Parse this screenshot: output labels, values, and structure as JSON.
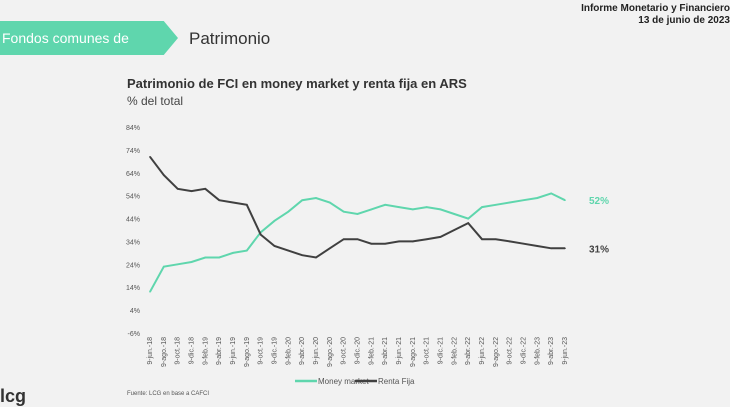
{
  "header": {
    "report": "Informe Monetario y Financiero",
    "date": "13 de junio de 2023"
  },
  "section": {
    "label": "Fondos comunes de inversión",
    "subsection": "Patrimonio"
  },
  "source": "Fuente: LCG en base a CAFCI",
  "logo": "lcg",
  "chart_data": {
    "type": "line",
    "title": "Patrimonio de FCI en money market y renta fija en ARS",
    "subtitle": "% del total",
    "ylim": [
      -6,
      84
    ],
    "yticks": [
      "-6%",
      "4%",
      "14%",
      "24%",
      "34%",
      "44%",
      "54%",
      "64%",
      "74%",
      "84%"
    ],
    "x": [
      "9-jun.-18",
      "9-ago.-18",
      "9-oct.-18",
      "9-dic.-18",
      "9-feb.-19",
      "9-abr.-19",
      "9-jun.-19",
      "9-ago.-19",
      "9-oct.-19",
      "9-dic.-19",
      "9-feb.-20",
      "9-abr.-20",
      "9-jun.-20",
      "9-ago.-20",
      "9-oct.-20",
      "9-dic.-20",
      "9-feb.-21",
      "9-abr.-21",
      "9-jun.-21",
      "9-ago.-21",
      "9-oct.-21",
      "9-dic.-21",
      "9-feb.-22",
      "9-abr.-22",
      "9-jun.-22",
      "9-ago.-22",
      "9-oct.-22",
      "9-dic.-22",
      "9-feb.-23",
      "9-abr.-23",
      "9-jun.-23"
    ],
    "grid": false,
    "legend": "bottom",
    "series": [
      {
        "name": "Money market",
        "color": "#5fd6ad",
        "end_label": "52%",
        "values": [
          12,
          23,
          24,
          25,
          27,
          27,
          29,
          30,
          38,
          43,
          47,
          52,
          53,
          51,
          47,
          46,
          48,
          50,
          49,
          48,
          49,
          48,
          46,
          44,
          49,
          50,
          51,
          52,
          53,
          55,
          52
        ]
      },
      {
        "name": "Renta Fija",
        "color": "#404040",
        "end_label": "31%",
        "values": [
          71,
          63,
          57,
          56,
          57,
          52,
          51,
          50,
          37,
          32,
          30,
          28,
          27,
          31,
          35,
          35,
          33,
          33,
          34,
          34,
          35,
          36,
          39,
          42,
          35,
          35,
          34,
          33,
          32,
          31,
          31
        ]
      }
    ]
  }
}
